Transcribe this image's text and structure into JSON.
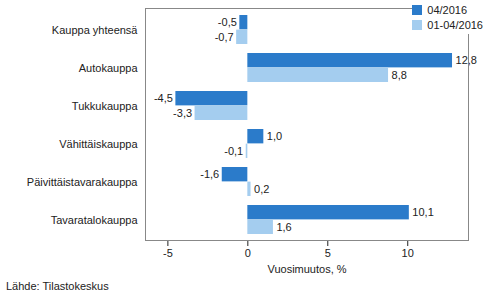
{
  "chart_data": {
    "type": "bar",
    "orientation": "horizontal",
    "categories": [
      "Kauppa yhteensä",
      "Autokauppa",
      "Tukkukauppa",
      "Vähittäiskauppa",
      "Päivittäistavarakauppa",
      "Tavaratalokauppa"
    ],
    "series": [
      {
        "name": "04/2016",
        "color": "#2b7bca",
        "values": [
          -0.5,
          12.8,
          -4.5,
          1.0,
          -1.6,
          10.1
        ],
        "value_labels": [
          "-0,5",
          "12,8",
          "-4,5",
          "1,0",
          "-1,6",
          "10,1"
        ]
      },
      {
        "name": "01-04/2016",
        "color": "#a4cdef",
        "values": [
          -0.7,
          8.8,
          -3.3,
          -0.1,
          0.2,
          1.6
        ],
        "value_labels": [
          "-0,7",
          "8,8",
          "-3,3",
          "-0,1",
          "0,2",
          "1,6"
        ]
      }
    ],
    "xlabel": "Vuosimuutos, %",
    "xlim": [
      -6.4,
      13.8
    ],
    "xticks": [
      -5,
      0,
      5,
      10
    ],
    "grid": false,
    "data_labels": true,
    "legend": "top-right",
    "caption": "Lähde: Tilastokeskus"
  }
}
